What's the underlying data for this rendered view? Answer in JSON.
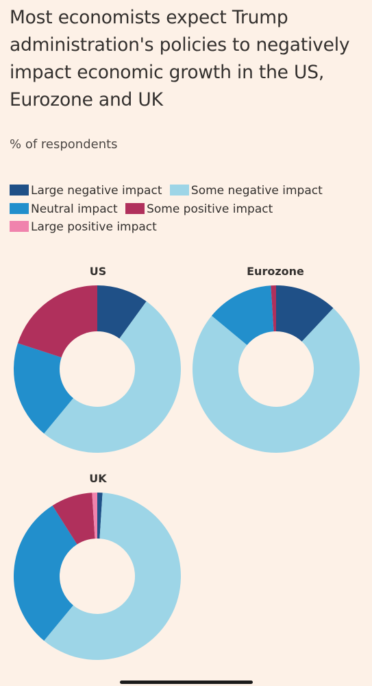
{
  "title": "Most economists expect Trump administration's policies to negatively impact economic growth in the US, Eurozone and UK",
  "subtitle": "% of respondents",
  "legend": [
    {
      "label": "Large negative impact",
      "color": "#1f5087"
    },
    {
      "label": "Some negative impact",
      "color": "#9dd5e7"
    },
    {
      "label": "Neutral impact",
      "color": "#228fcc"
    },
    {
      "label": "Some positive impact",
      "color": "#b0305c"
    },
    {
      "label": "Large positive impact",
      "color": "#f083ad"
    }
  ],
  "chart_data": [
    {
      "type": "pie",
      "title": "US",
      "categories": [
        "Large negative impact",
        "Some negative impact",
        "Neutral impact",
        "Some positive impact",
        "Large positive impact"
      ],
      "values": [
        10,
        51,
        19,
        20,
        0
      ]
    },
    {
      "type": "pie",
      "title": "Eurozone",
      "categories": [
        "Large negative impact",
        "Some negative impact",
        "Neutral impact",
        "Some positive impact",
        "Large positive impact"
      ],
      "values": [
        12,
        74,
        13,
        1,
        0
      ]
    },
    {
      "type": "pie",
      "title": "UK",
      "categories": [
        "Large negative impact",
        "Some negative impact",
        "Neutral impact",
        "Some positive impact",
        "Large positive impact"
      ],
      "values": [
        1,
        60,
        30,
        8,
        1
      ]
    }
  ]
}
